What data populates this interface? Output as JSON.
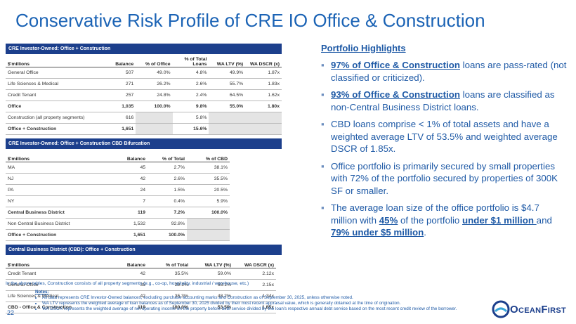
{
  "title": "Conservative Risk Profile of CRE IO Office & Construction",
  "tables": [
    {
      "title": "CRE Investor-Owned: Office + Construction",
      "columns": [
        "$'millions",
        "Balance",
        "% of Office",
        "% of Total Loans",
        "WA LTV (%)",
        "WA DSCR (x)"
      ],
      "rows": [
        {
          "cells": [
            "General Office",
            "507",
            "49.0%",
            "4.8%",
            "49.9%",
            "1.87x"
          ]
        },
        {
          "cells": [
            "Life Sciences & Medical",
            "271",
            "26.2%",
            "2.6%",
            "55.7%",
            "1.83x"
          ]
        },
        {
          "cells": [
            "Credit Tenant",
            "257",
            "24.8%",
            "2.4%",
            "64.5%",
            "1.62x"
          ]
        },
        {
          "cells": [
            "Office",
            "1,035",
            "100.0%",
            "9.8%",
            "55.0%",
            "1.80x"
          ],
          "bold": true
        },
        {
          "cells": [
            "Construction (all property segments)",
            "616",
            null,
            "5.8%",
            null,
            null
          ]
        },
        {
          "cells": [
            "Office + Construction",
            "1,651",
            null,
            "15.6%",
            null,
            null
          ],
          "bold": true
        }
      ]
    },
    {
      "title": "CRE Investor-Owned: Office + Construction CBD Bifurcation",
      "columns": [
        "$'millions",
        "Balance",
        "% of Total",
        "% of CBD"
      ],
      "rows": [
        {
          "cells": [
            "MA",
            "45",
            "2.7%",
            "38.1%"
          ]
        },
        {
          "cells": [
            "NJ",
            "42",
            "2.6%",
            "35.5%"
          ]
        },
        {
          "cells": [
            "PA",
            "24",
            "1.5%",
            "20.5%"
          ]
        },
        {
          "cells": [
            "NY",
            "7",
            "0.4%",
            "5.9%"
          ]
        },
        {
          "cells": [
            "Central Business District",
            "119",
            "7.2%",
            "100.0%"
          ],
          "bold": true
        },
        {
          "cells": [
            "Non Central Business District",
            "1,532",
            "92.8%",
            null
          ]
        },
        {
          "cells": [
            "Office + Construction",
            "1,651",
            "100.0%",
            null
          ],
          "bold": true
        }
      ]
    },
    {
      "title": "Central Business District (CBD): Office + Construction",
      "columns": [
        "$'millions",
        "Balance",
        "% of Total",
        "WA LTV (%)",
        "WA DSCR (x)"
      ],
      "rows": [
        {
          "cells": [
            "Credit Tenant",
            "42",
            "35.5%",
            "59.0%",
            "2.12x"
          ]
        },
        {
          "cells": [
            "General Office",
            "35",
            "29.1%",
            "53.1%",
            "2.15x"
          ]
        },
        {
          "cells": [
            "Life Sciences & Medical",
            "42",
            "35.3%",
            "48.2%",
            "1.34x"
          ]
        },
        {
          "cells": [
            "CBD - Office & Construction",
            "119",
            "100.0%",
            "53.5%",
            "1.85x"
          ],
          "bold": true
        }
      ]
    }
  ],
  "highlights": {
    "title": "Portfolio Highlights",
    "bullets": [
      [
        {
          "text": "97% of Office & Construction",
          "style": "bold-underline"
        },
        " loans are pass-rated (not classified or criticized)."
      ],
      [
        {
          "text": "93% of Office & Construction",
          "style": "bold-underline"
        },
        " loans are classified as non-Central Business District loans."
      ],
      [
        "CBD loans comprise < 1% of total assets and have a weighted average LTV of 53.5% and weighted average DSCR of 1.85x."
      ],
      [
        "Office portfolio is primarily secured by small properties with 72% of the portfolio secured by properties of 300K SF or smaller."
      ],
      [
        "The average loan size of the office portfolio is $4.7 million with ",
        {
          "text": "45%",
          "style": "bold-underline"
        },
        " of the portfolio ",
        {
          "text": "under $1 million ",
          "style": "bold-underline"
        },
        "and ",
        {
          "text": "79% under $5 million",
          "style": "bold-underline"
        },
        "."
      ]
    ]
  },
  "footnote": "In the above tables, Construction consists of all property segments (e.g., co-op, hospitality, industrial / warehouse, etc.)",
  "notes": {
    "title": "Notes:",
    "items": [
      "All data represents CRE Investor-Owned balances, excluding purchase accounting marks and Construction as of September 30, 2025, unless otherwise noted.",
      "WA LTV represents the weighted average of loan balances as of September 30, 2025 divided by their most recent appraisal value, which is generally obtained at the time of origination.",
      "WA DSCR represents the weighted average of net operating income on the property before debt service divided by the loan's respective annual debt service based on the most recent credit review of the borrower."
    ]
  },
  "page_number": "22",
  "logo": "OceanFirst"
}
